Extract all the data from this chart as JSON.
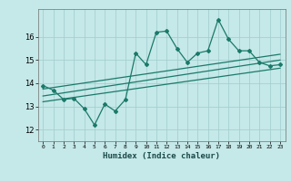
{
  "title": "",
  "xlabel": "Humidex (Indice chaleur)",
  "ylabel": "",
  "background_color": "#c5e8e8",
  "grid_color": "#a0cccc",
  "line_color": "#1a7a6a",
  "xlim": [
    -0.5,
    23.5
  ],
  "ylim": [
    11.5,
    17.2
  ],
  "yticks": [
    12,
    13,
    14,
    15,
    16
  ],
  "xticks": [
    0,
    1,
    2,
    3,
    4,
    5,
    6,
    7,
    8,
    9,
    10,
    11,
    12,
    13,
    14,
    15,
    16,
    17,
    18,
    19,
    20,
    21,
    22,
    23
  ],
  "main_series": [
    [
      0,
      13.9
    ],
    [
      1,
      13.7
    ],
    [
      2,
      13.3
    ],
    [
      3,
      13.35
    ],
    [
      4,
      12.9
    ],
    [
      5,
      12.2
    ],
    [
      6,
      13.1
    ],
    [
      7,
      12.8
    ],
    [
      8,
      13.3
    ],
    [
      9,
      15.3
    ],
    [
      10,
      14.8
    ],
    [
      11,
      16.2
    ],
    [
      12,
      16.25
    ],
    [
      13,
      15.5
    ],
    [
      14,
      14.9
    ],
    [
      15,
      15.3
    ],
    [
      16,
      15.4
    ],
    [
      17,
      16.75
    ],
    [
      18,
      15.9
    ],
    [
      19,
      15.4
    ],
    [
      20,
      15.4
    ],
    [
      21,
      14.9
    ],
    [
      22,
      14.75
    ],
    [
      23,
      14.8
    ]
  ],
  "trend_line1": [
    [
      0,
      13.75
    ],
    [
      23,
      15.25
    ]
  ],
  "trend_line2": [
    [
      0,
      13.45
    ],
    [
      23,
      15.0
    ]
  ],
  "trend_line3": [
    [
      0,
      13.2
    ],
    [
      23,
      14.65
    ]
  ]
}
